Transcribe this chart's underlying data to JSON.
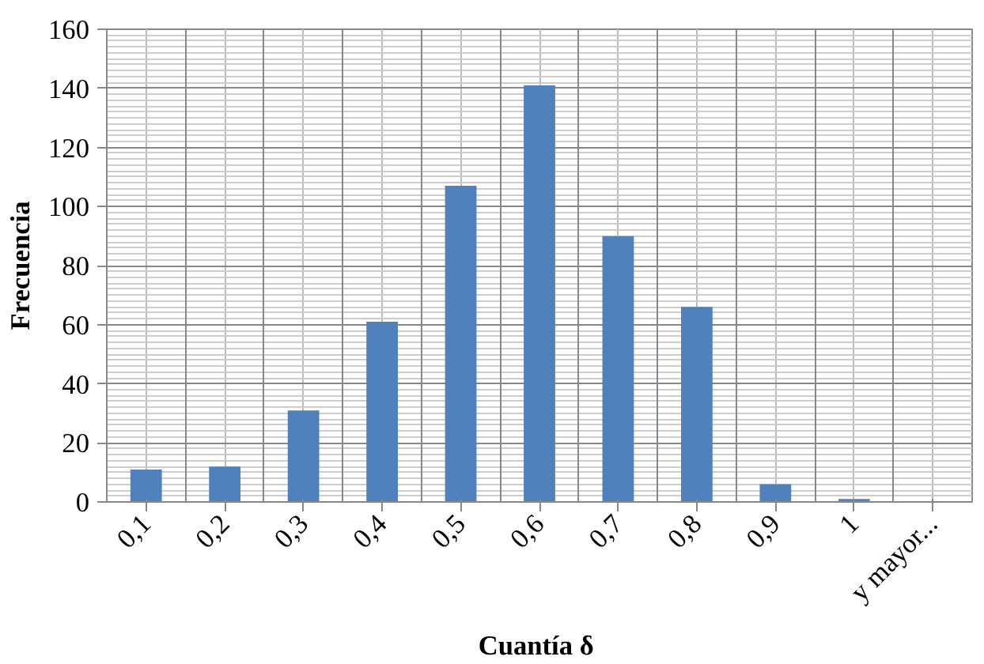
{
  "chart_data": {
    "type": "bar",
    "xlabel": "Cuantía  δ",
    "ylabel": "Frecuencia",
    "categories": [
      "0,1",
      "0,2",
      "0,3",
      "0,4",
      "0,5",
      "0,6",
      "0,7",
      "0,8",
      "0,9",
      "1",
      "y mayor..."
    ],
    "values": [
      11,
      12,
      31,
      61,
      107,
      141,
      90,
      66,
      6,
      1,
      0
    ],
    "color": "#4f81bd",
    "ylim": [
      0,
      160
    ],
    "yticks": [
      0,
      20,
      40,
      60,
      80,
      100,
      120,
      140,
      160
    ],
    "grid": true
  }
}
